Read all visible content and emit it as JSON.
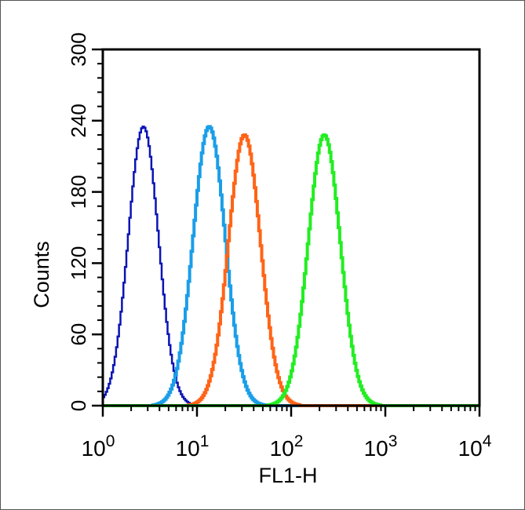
{
  "chart_data": {
    "type": "histogram",
    "title": "",
    "xlabel": "FL1-H",
    "ylabel": "Counts",
    "xscale": "log",
    "xlim": [
      1,
      10000
    ],
    "ylim": [
      0,
      300
    ],
    "x_ticks": [
      {
        "base": "10",
        "exp": "0"
      },
      {
        "base": "10",
        "exp": "1"
      },
      {
        "base": "10",
        "exp": "2"
      },
      {
        "base": "10",
        "exp": "3"
      },
      {
        "base": "10",
        "exp": "4"
      }
    ],
    "y_ticks": [
      "0",
      "60",
      "120",
      "180",
      "240",
      "300"
    ],
    "grid": false,
    "legend": "none",
    "series": [
      {
        "color": "#0a14b4",
        "stroke_width": 2.5,
        "peak_x": 2.7,
        "peak_count": 235,
        "log_sigma": 0.16
      },
      {
        "color": "#1a9ee8",
        "stroke_width": 4,
        "peak_x": 13.5,
        "peak_count": 235,
        "log_sigma": 0.17
      },
      {
        "color": "#ff6417",
        "stroke_width": 4,
        "peak_x": 32,
        "peak_count": 228,
        "log_sigma": 0.17
      },
      {
        "color": "#22ee22",
        "stroke_width": 4,
        "peak_x": 225,
        "peak_count": 228,
        "log_sigma": 0.17
      }
    ]
  }
}
